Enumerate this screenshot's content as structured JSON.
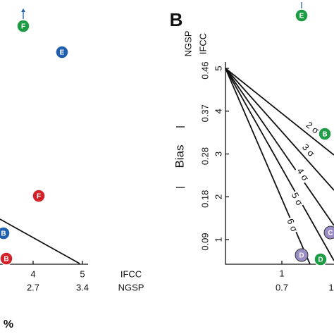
{
  "left": {
    "points": [
      "F",
      "E",
      "F",
      "B",
      "B"
    ],
    "xticks": [
      {
        "ifcc": "4",
        "ngsp": "2.7"
      },
      {
        "ifcc": "5",
        "ngsp": "3.4"
      }
    ],
    "ifcc": "IFCC",
    "ngsp": "NGSP",
    "unit": "%"
  },
  "right": {
    "panel": "B",
    "y_title_ngsp": "NGSP",
    "y_title_ifcc": "IFCC",
    "yticks": [
      {
        "ifcc": "5",
        "ngsp": "0.46"
      },
      {
        "ifcc": "4",
        "ngsp": "0.37"
      },
      {
        "ifcc": "3",
        "ngsp": "0.28"
      },
      {
        "ifcc": "2",
        "ngsp": "0.18"
      },
      {
        "ifcc": "1",
        "ngsp": "0.09"
      }
    ],
    "bias": "Bias",
    "sigma_lines": [
      "2 σ",
      "3 σ",
      "4 σ",
      "5 σ",
      "6 σ"
    ],
    "points": [
      "E",
      "B",
      "C",
      "D",
      "D"
    ],
    "xticks": [
      {
        "ifcc": "1",
        "ngsp": "0.7"
      },
      {
        "ngsp": "1"
      }
    ]
  }
}
